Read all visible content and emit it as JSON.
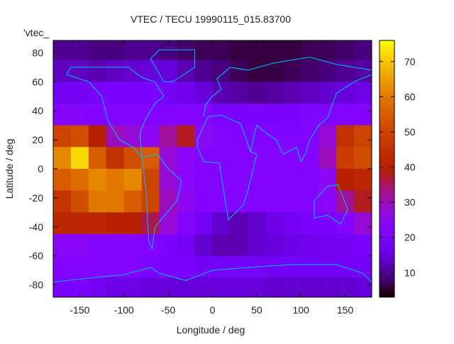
{
  "chart_data": {
    "type": "heatmap",
    "title": "VTEC / TECU 19990115_015.83700",
    "xlabel": "Longitude / deg",
    "ylabel": "Latitude / deg",
    "legend_key": "'vtec_",
    "legend_placement": "top-left",
    "xlim": [
      -180,
      180
    ],
    "ylim": [
      -88.5,
      88.5
    ],
    "xticks": [
      -150,
      -100,
      -50,
      0,
      50,
      100,
      150
    ],
    "yticks": [
      80,
      60,
      40,
      20,
      0,
      -20,
      -40,
      -60,
      -80
    ],
    "colorbar": {
      "range": [
        3,
        76
      ],
      "ticks": [
        10,
        20,
        30,
        40,
        50,
        60,
        70
      ],
      "palette": "black-purple-red-orange-yellow"
    },
    "grid_lon_centers": [
      -170,
      -150,
      -130,
      -110,
      -90,
      -70,
      -50,
      -30,
      -10,
      10,
      30,
      50,
      70,
      90,
      110,
      130,
      150,
      170
    ],
    "grid_lat_bands": [
      [
        90,
        75
      ],
      [
        75,
        60
      ],
      [
        60,
        45
      ],
      [
        45,
        30
      ],
      [
        30,
        15
      ],
      [
        15,
        0
      ],
      [
        0,
        -15
      ],
      [
        -15,
        -30
      ],
      [
        -30,
        -45
      ],
      [
        -45,
        -60
      ],
      [
        -60,
        -75
      ],
      [
        -75,
        -90
      ]
    ],
    "values": [
      [
        10,
        10,
        9,
        9,
        10,
        10,
        9,
        8,
        7,
        7,
        6,
        6,
        6,
        6,
        7,
        7,
        8,
        9
      ],
      [
        13,
        13,
        12,
        13,
        14,
        15,
        15,
        12,
        10,
        9,
        7,
        6,
        6,
        7,
        8,
        9,
        10,
        11
      ],
      [
        18,
        18,
        19,
        20,
        20,
        20,
        18,
        17,
        15,
        12,
        11,
        10,
        11,
        12,
        13,
        14,
        15,
        16
      ],
      [
        23,
        23,
        22,
        22,
        22,
        22,
        22,
        22,
        22,
        20,
        20,
        20,
        20,
        20,
        21,
        21,
        22,
        22
      ],
      [
        50,
        52,
        40,
        30,
        28,
        25,
        32,
        38,
        25,
        22,
        21,
        21,
        21,
        21,
        21,
        28,
        45,
        50
      ],
      [
        62,
        72,
        55,
        45,
        52,
        55,
        28,
        24,
        22,
        22,
        22,
        22,
        22,
        22,
        22,
        30,
        48,
        52
      ],
      [
        55,
        58,
        62,
        60,
        62,
        50,
        28,
        24,
        22,
        22,
        22,
        22,
        22,
        22,
        22,
        25,
        40,
        42
      ],
      [
        46,
        52,
        60,
        60,
        55,
        50,
        30,
        25,
        22,
        22,
        22,
        22,
        22,
        22,
        22,
        24,
        32,
        38
      ],
      [
        42,
        42,
        42,
        40,
        40,
        36,
        28,
        22,
        18,
        14,
        12,
        14,
        16,
        18,
        20,
        20,
        22,
        28
      ],
      [
        24,
        24,
        22,
        22,
        22,
        22,
        20,
        18,
        14,
        12,
        12,
        14,
        15,
        16,
        17,
        18,
        18,
        20
      ],
      [
        22,
        22,
        22,
        22,
        22,
        20,
        20,
        20,
        18,
        18,
        18,
        18,
        18,
        18,
        18,
        18,
        18,
        18
      ],
      [
        20,
        20,
        18,
        16,
        16,
        15,
        15,
        15,
        15,
        15,
        15,
        15,
        14,
        14,
        14,
        14,
        14,
        15
      ]
    ],
    "coastline_color": "#00bfff"
  }
}
